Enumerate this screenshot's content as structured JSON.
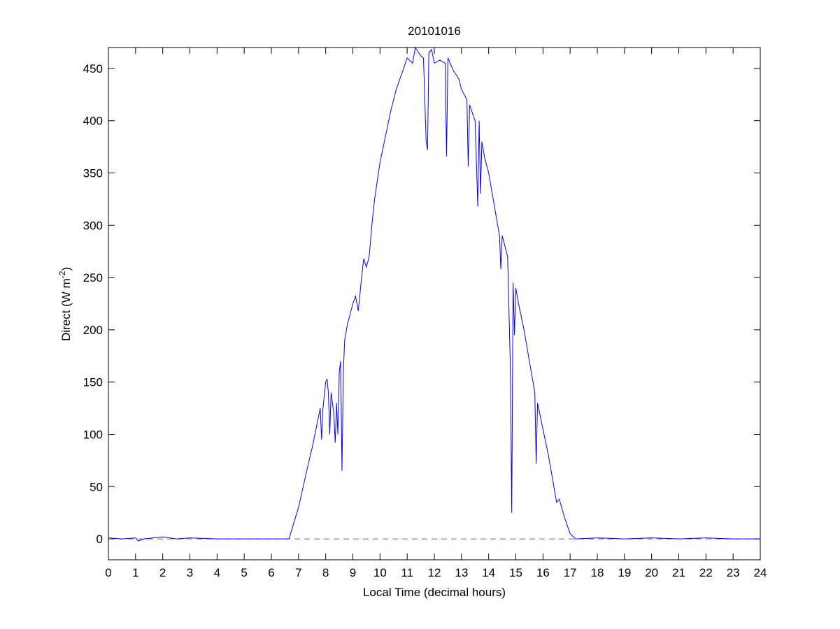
{
  "chart_data": {
    "type": "line",
    "title": "20101016",
    "xlabel": "Local Time (decimal hours)",
    "ylabel_main": "Direct (W m",
    "ylabel_sup": "-2",
    "ylabel_close": ")",
    "xlim": [
      0,
      24
    ],
    "ylim": [
      -20,
      470
    ],
    "xticks": [
      0,
      1,
      2,
      3,
      4,
      5,
      6,
      7,
      8,
      9,
      10,
      11,
      12,
      13,
      14,
      15,
      16,
      17,
      18,
      19,
      20,
      21,
      22,
      23,
      24
    ],
    "yticks": [
      0,
      50,
      100,
      150,
      200,
      250,
      300,
      350,
      400,
      450
    ],
    "grid": false,
    "colors": {
      "series": "#0000ff",
      "reference": "#c0504d"
    },
    "reference_line": {
      "name": "zero line",
      "y": 0,
      "style": "dashed"
    },
    "series": [
      {
        "name": "Direct",
        "points": [
          [
            0,
            1
          ],
          [
            0.5,
            0
          ],
          [
            1,
            1
          ],
          [
            1.1,
            -2
          ],
          [
            1.3,
            0
          ],
          [
            2,
            2
          ],
          [
            2.5,
            0
          ],
          [
            3,
            1
          ],
          [
            4,
            0
          ],
          [
            5,
            0
          ],
          [
            6,
            0
          ],
          [
            6.65,
            0
          ],
          [
            7,
            30
          ],
          [
            7.3,
            65
          ],
          [
            7.5,
            87
          ],
          [
            7.8,
            125
          ],
          [
            7.85,
            95
          ],
          [
            7.9,
            125
          ],
          [
            8.0,
            150
          ],
          [
            8.05,
            153
          ],
          [
            8.1,
            140
          ],
          [
            8.15,
            100
          ],
          [
            8.2,
            140
          ],
          [
            8.3,
            120
          ],
          [
            8.35,
            92
          ],
          [
            8.4,
            130
          ],
          [
            8.45,
            100
          ],
          [
            8.5,
            160
          ],
          [
            8.55,
            170
          ],
          [
            8.6,
            65
          ],
          [
            8.65,
            160
          ],
          [
            8.7,
            190
          ],
          [
            8.8,
            205
          ],
          [
            9.0,
            225
          ],
          [
            9.1,
            232
          ],
          [
            9.2,
            218
          ],
          [
            9.3,
            245
          ],
          [
            9.4,
            268
          ],
          [
            9.5,
            260
          ],
          [
            9.6,
            270
          ],
          [
            9.7,
            300
          ],
          [
            9.8,
            325
          ],
          [
            10,
            360
          ],
          [
            10.2,
            385
          ],
          [
            10.4,
            410
          ],
          [
            10.6,
            430
          ],
          [
            10.8,
            445
          ],
          [
            11,
            460
          ],
          [
            11.2,
            455
          ],
          [
            11.3,
            470
          ],
          [
            11.5,
            462
          ],
          [
            11.6,
            460
          ],
          [
            11.7,
            380
          ],
          [
            11.75,
            372
          ],
          [
            11.8,
            465
          ],
          [
            11.9,
            468
          ],
          [
            12.0,
            455
          ],
          [
            12.2,
            458
          ],
          [
            12.4,
            455
          ],
          [
            12.45,
            366
          ],
          [
            12.5,
            460
          ],
          [
            12.7,
            448
          ],
          [
            12.9,
            440
          ],
          [
            13.0,
            430
          ],
          [
            13.2,
            420
          ],
          [
            13.25,
            356
          ],
          [
            13.3,
            415
          ],
          [
            13.5,
            400
          ],
          [
            13.6,
            318
          ],
          [
            13.65,
            400
          ],
          [
            13.7,
            330
          ],
          [
            13.75,
            380
          ],
          [
            13.85,
            365
          ],
          [
            14.0,
            350
          ],
          [
            14.2,
            320
          ],
          [
            14.4,
            290
          ],
          [
            14.45,
            258
          ],
          [
            14.5,
            290
          ],
          [
            14.7,
            270
          ],
          [
            14.8,
            165
          ],
          [
            14.85,
            25
          ],
          [
            14.9,
            245
          ],
          [
            14.95,
            195
          ],
          [
            15.0,
            240
          ],
          [
            15.1,
            225
          ],
          [
            15.3,
            200
          ],
          [
            15.5,
            170
          ],
          [
            15.7,
            140
          ],
          [
            15.75,
            72
          ],
          [
            15.8,
            130
          ],
          [
            16,
            105
          ],
          [
            16.2,
            80
          ],
          [
            16.4,
            50
          ],
          [
            16.5,
            35
          ],
          [
            16.6,
            38
          ],
          [
            16.8,
            20
          ],
          [
            17.0,
            5
          ],
          [
            17.2,
            0
          ],
          [
            18,
            1
          ],
          [
            19,
            0
          ],
          [
            20,
            1
          ],
          [
            21,
            0
          ],
          [
            22,
            1
          ],
          [
            23,
            0
          ],
          [
            24,
            0
          ]
        ]
      }
    ]
  }
}
